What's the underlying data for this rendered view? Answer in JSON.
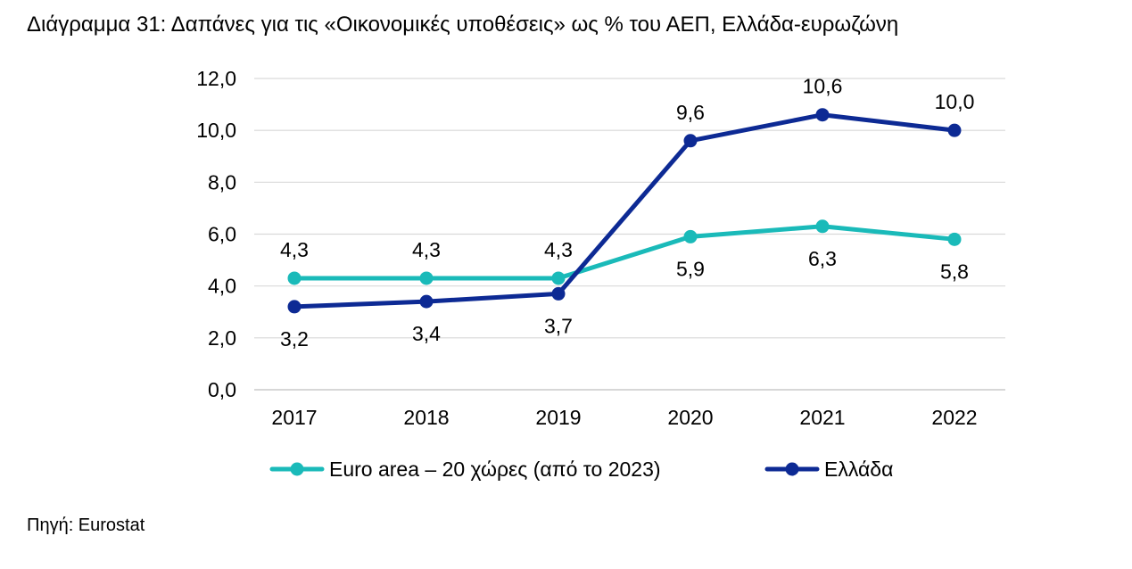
{
  "title": "Διάγραμμα 31: Δαπάνες για τις «Οικονομικές υποθέσεις» ως % του ΑΕΠ, Ελλάδα-ευρωζώνη",
  "source": "Πηγή: Eurostat",
  "chart_data": {
    "type": "line",
    "title": "Διάγραμμα 31: Δαπάνες για τις «Οικονομικές υποθέσεις» ως % του ΑΕΠ, Ελλάδα-ευρωζώνη",
    "x": [
      "2017",
      "2018",
      "2019",
      "2020",
      "2021",
      "2022"
    ],
    "ylim": [
      0,
      12
    ],
    "yticks": [
      "0,0",
      "2,0",
      "4,0",
      "6,0",
      "8,0",
      "10,0",
      "12,0"
    ],
    "grid": true,
    "legend_position": "bottom",
    "series": [
      {
        "name": "Euro area – 20 χώρες (από το 2023)",
        "values": [
          4.3,
          4.3,
          4.3,
          5.9,
          6.3,
          5.8
        ],
        "labels": [
          "4,3",
          "4,3",
          "4,3",
          "5,9",
          "6,3",
          "5,8"
        ],
        "label_side": [
          "above",
          "above",
          "above",
          "below",
          "below",
          "below"
        ],
        "color": "#1ABAB9"
      },
      {
        "name": "Ελλάδα",
        "values": [
          3.2,
          3.4,
          3.7,
          9.6,
          10.6,
          10.0
        ],
        "labels": [
          "3,2",
          "3,4",
          "3,7",
          "9,6",
          "10,6",
          "10,0"
        ],
        "label_side": [
          "below",
          "below",
          "below",
          "above",
          "above",
          "above"
        ],
        "color": "#0D2A94"
      }
    ]
  }
}
